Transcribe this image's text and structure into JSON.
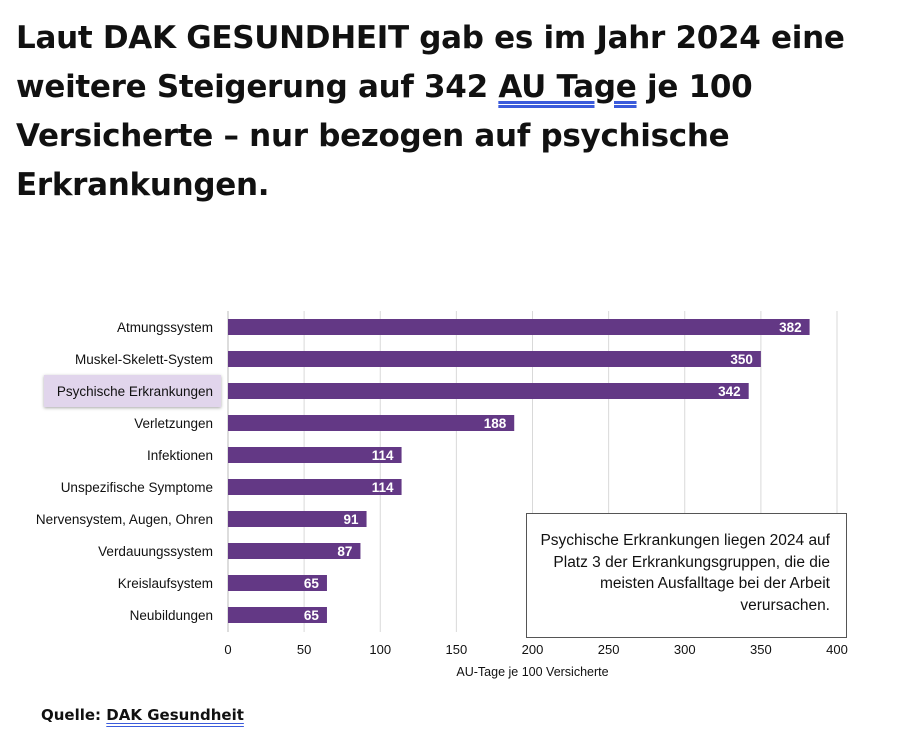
{
  "headline": {
    "before": "Laut DAK GESUNDHEIT gab es im Jahr 2024 eine weitere Steigerung auf 342 ",
    "link": "AU Tage",
    "after": " je 100 Versicherte – nur bezogen auf psychische Erkrankungen."
  },
  "chart_data": {
    "type": "bar",
    "orientation": "horizontal",
    "categories": [
      "Atmungssystem",
      "Muskel-Skelett-System",
      "Psychische Erkrankungen",
      "Verletzungen",
      "Infektionen",
      "Unspezifische Symptome",
      "Nervensystem, Augen, Ohren",
      "Verdauungssystem",
      "Kreislaufsystem",
      "Neubildungen"
    ],
    "values": [
      382,
      350,
      342,
      188,
      114,
      114,
      91,
      87,
      65,
      65
    ],
    "xlabel": "AU-Tage je 100 Versicherte",
    "xlim": [
      0,
      400
    ],
    "xticks": [
      0,
      50,
      100,
      150,
      200,
      250,
      300,
      350,
      400
    ],
    "grid": true,
    "highlighted_category": "Psychische Erkrankungen",
    "annotation": "Psychische Erkrankungen liegen 2024 auf Platz 3 der Erkrankungsgruppen, die die meisten Ausfalltage bei der Arbeit verursachen.",
    "bar_color": "#633885",
    "highlight_color": "#e1d5ec"
  },
  "source": {
    "label": "Quelle:",
    "link": "DAK Gesundheit"
  }
}
